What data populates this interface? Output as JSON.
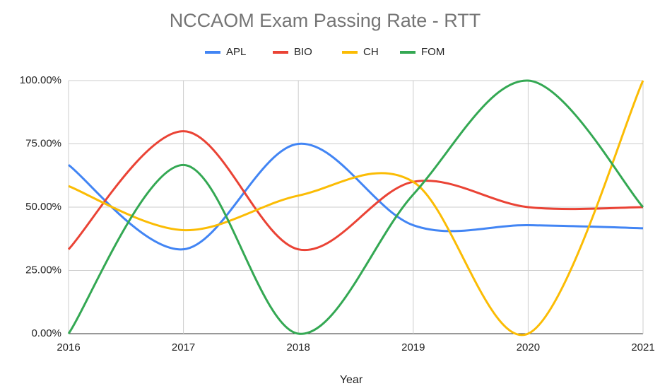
{
  "chart_data": {
    "type": "line",
    "title": "NCCAOM Exam Passing Rate - RTT",
    "x_label": "Year",
    "x": [
      2016,
      2017,
      2018,
      2019,
      2020,
      2021
    ],
    "series": [
      {
        "name": "APL",
        "color": "#4285f4",
        "values": [
          66.67,
          33.33,
          75,
          42.86,
          42.86,
          41.67
        ]
      },
      {
        "name": "BIO",
        "color": "#ea4335",
        "values": [
          33.33,
          80,
          33.33,
          60,
          50,
          50
        ]
      },
      {
        "name": "CH",
        "color": "#fbbc04",
        "values": [
          58.33,
          40.91,
          54.55,
          60,
          0,
          100
        ]
      },
      {
        "name": "FOM",
        "color": "#34a853",
        "values": [
          0,
          66.67,
          0,
          55,
          100,
          50
        ]
      }
    ],
    "xlim": [
      2016,
      2021
    ],
    "xticks": [
      2016,
      2017,
      2018,
      2019,
      2020,
      2021
    ],
    "ylim": [
      0,
      100
    ],
    "yticks": [
      {
        "value": 0,
        "label": "0.00%"
      },
      {
        "value": 25,
        "label": "25.00%"
      },
      {
        "value": 50,
        "label": "50.00%"
      },
      {
        "value": 75,
        "label": "75.00%"
      },
      {
        "value": 100,
        "label": "100.00%"
      }
    ],
    "grid": true,
    "legend": "top"
  }
}
